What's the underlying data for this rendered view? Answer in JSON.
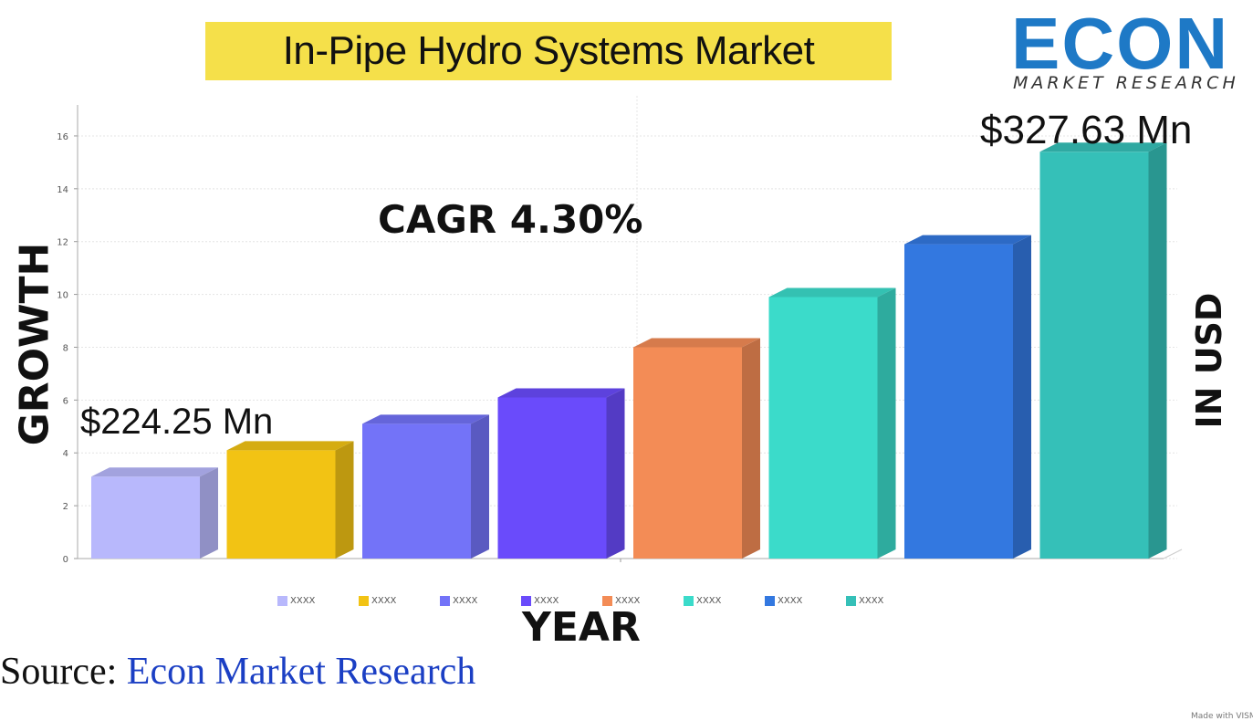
{
  "title": "In-Pipe Hydro Systems Market",
  "logo": {
    "word": "ECON",
    "subtitle": "MARKET RESEARCH",
    "color": "#1e79c6"
  },
  "annotations": {
    "start_value": "$224.25 Mn",
    "end_value": "$327.63 Mn",
    "cagr": "CAGR 4.30%"
  },
  "axis_titles": {
    "y_left": "GROWTH",
    "y_right": "IN USD",
    "x": "YEAR"
  },
  "source": {
    "prefix": "Source: ",
    "name": "Econ Market Research"
  },
  "footer": {
    "made_with": "Made with VISM"
  },
  "chart_data": {
    "type": "bar",
    "style": "3d",
    "categories": [
      "XXXX",
      "XXXX",
      "XXXX",
      "XXXX",
      "XXXX",
      "XXXX",
      "XXXX",
      "XXXX"
    ],
    "values": [
      3.1,
      4.1,
      5.1,
      6.1,
      8.0,
      9.9,
      11.9,
      15.4
    ],
    "colors": [
      "#b8b8fc",
      "#f2c314",
      "#7373f8",
      "#6a4bfb",
      "#f38c56",
      "#3bdbca",
      "#3378e0",
      "#35c0b8"
    ],
    "ylim": [
      0,
      17
    ],
    "yticks": [
      0,
      2,
      4,
      6,
      8,
      10,
      12,
      14,
      16
    ],
    "grid": true,
    "legend": "bottom"
  }
}
